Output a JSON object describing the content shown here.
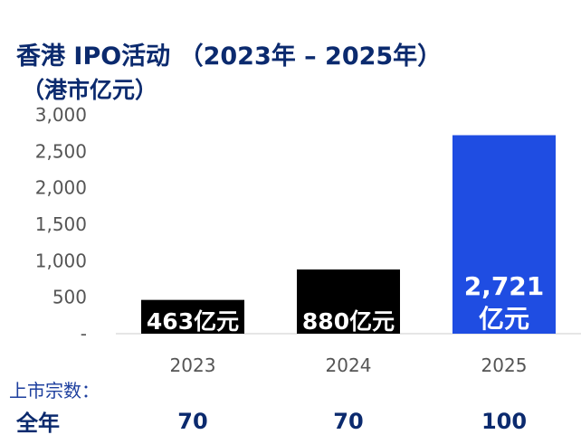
{
  "title": "香港 IPO活动 （2023年 – 2025年）",
  "unit_label": "（港市亿元）",
  "listing_label": "上市宗数：",
  "full_year_label": "全年",
  "colors": {
    "title": "#0b2a6e",
    "axis_text": "#555555",
    "bar_default": "#000000",
    "bar_highlight": "#1f4de2",
    "count_text": "#0b2a6e"
  },
  "chart_data": {
    "type": "bar",
    "categories": [
      "2023",
      "2024",
      "2025"
    ],
    "values": [
      463,
      880,
      2721
    ],
    "data_labels": [
      "463亿元",
      "880亿元",
      "2,721\n亿元"
    ],
    "ylim": [
      0,
      3000
    ],
    "y_ticks": [
      "-",
      "500",
      "1,000",
      "1,500",
      "2,000",
      "2,500",
      "3,000"
    ],
    "y_tick_values": [
      0,
      500,
      1000,
      1500,
      2000,
      2500,
      3000
    ],
    "grid": false,
    "listing_counts": [
      "70",
      "70",
      "100"
    ]
  }
}
